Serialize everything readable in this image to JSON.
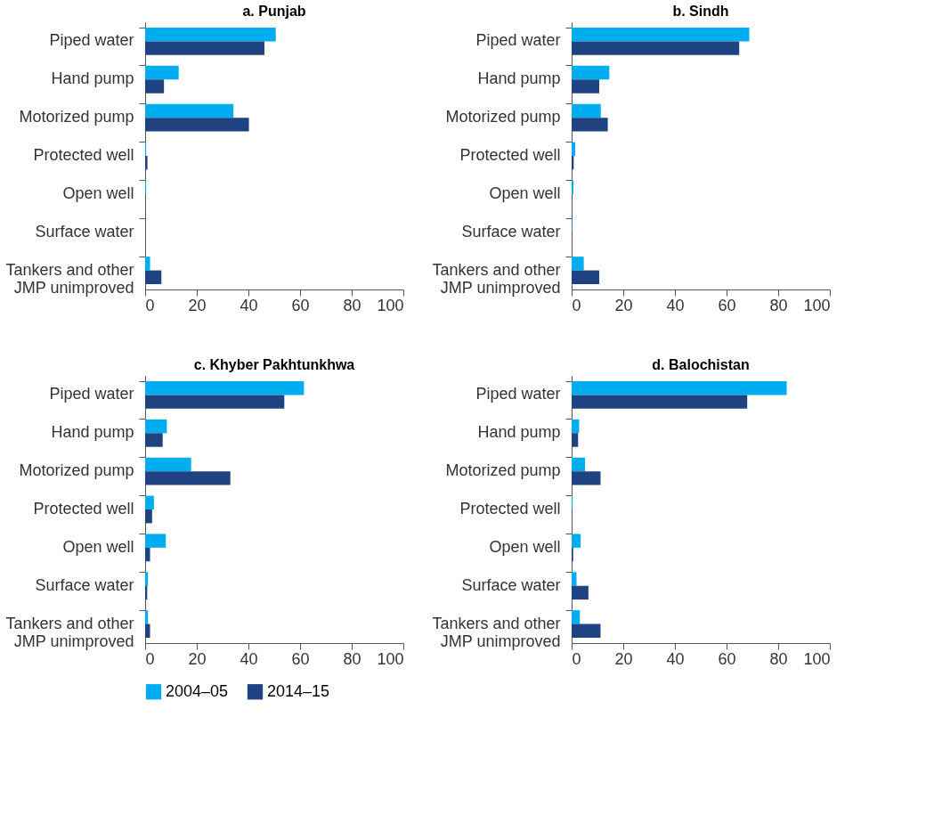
{
  "chart_data": [
    {
      "type": "bar",
      "orientation": "horizontal",
      "title": "a. Punjab",
      "categories": [
        "Piped water",
        "Hand pump",
        "Motorized pump",
        "Protected well",
        "Open well",
        "Surface water",
        "Tankers and other JMP unimproved"
      ],
      "xlim": [
        0,
        100
      ],
      "xticks": [
        0,
        20,
        40,
        60,
        80,
        100
      ],
      "grid": false,
      "legend": "bottom",
      "series": [
        {
          "name": "2004–05",
          "color": "#00aeef",
          "values": [
            50.6,
            13,
            34.2,
            0.4,
            0.4,
            0,
            1.9
          ]
        },
        {
          "name": "2014–15",
          "color": "#1f4280",
          "values": [
            46.2,
            7.3,
            40.2,
            0.9,
            0,
            0,
            6.3
          ]
        }
      ]
    },
    {
      "type": "bar",
      "orientation": "horizontal",
      "title": "b. Sindh",
      "categories": [
        "Piped water",
        "Hand pump",
        "Motorized pump",
        "Protected well",
        "Open well",
        "Surface water",
        "Tankers and other JMP unimproved"
      ],
      "xlim": [
        0,
        100
      ],
      "xticks": [
        0,
        20,
        40,
        60,
        80,
        100
      ],
      "grid": false,
      "legend": "bottom",
      "series": [
        {
          "name": "2004–05",
          "color": "#00aeef",
          "values": [
            68.8,
            14.6,
            11.3,
            1.4,
            0.7,
            0.2,
            4.7
          ]
        },
        {
          "name": "2014–15",
          "color": "#1f4280",
          "values": [
            64.9,
            10.7,
            14,
            0.8,
            null,
            null,
            10.7
          ]
        }
      ]
    },
    {
      "type": "bar",
      "orientation": "horizontal",
      "title": "c. Khyber Pakhtunkhwa",
      "categories": [
        "Piped water",
        "Hand pump",
        "Motorized pump",
        "Protected well",
        "Open well",
        "Surface water",
        "Tankers and other JMP unimproved"
      ],
      "xlim": [
        0,
        100
      ],
      "xticks": [
        0,
        20,
        40,
        60,
        80,
        100
      ],
      "grid": false,
      "legend": "bottom",
      "series": [
        {
          "name": "2004–05",
          "color": "#00aeef",
          "values": [
            61.5,
            8.4,
            17.8,
            3.4,
            8,
            1.1,
            1.1
          ]
        },
        {
          "name": "2014–15",
          "color": "#1f4280",
          "values": [
            53.9,
            6.8,
            33,
            2.7,
            1.9,
            0.8,
            1.9
          ]
        }
      ]
    },
    {
      "type": "bar",
      "orientation": "horizontal",
      "title": "d. Balochistan",
      "categories": [
        "Piped water",
        "Hand pump",
        "Motorized pump",
        "Protected well",
        "Open well",
        "Surface water",
        "Tankers and other JMP unimproved"
      ],
      "xlim": [
        0,
        100
      ],
      "xticks": [
        0,
        20,
        40,
        60,
        80,
        100
      ],
      "grid": false,
      "legend": "bottom",
      "series": [
        {
          "name": "2004–05",
          "color": "#00aeef",
          "values": [
            83.3,
            2.9,
            5.2,
            0.4,
            3.5,
            1.9,
            3.2
          ]
        },
        {
          "name": "2014–15",
          "color": "#1f4280",
          "values": [
            68,
            2.5,
            11.2,
            0,
            0.6,
            6.5,
            11.2
          ]
        }
      ]
    }
  ]
}
